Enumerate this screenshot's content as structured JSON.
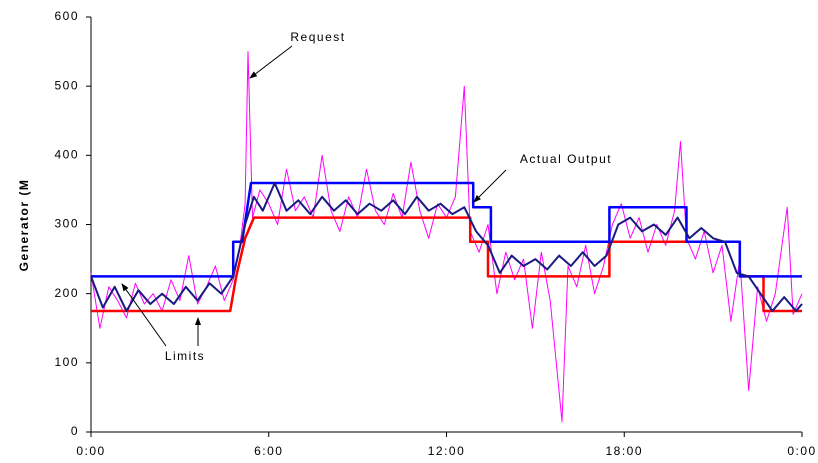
{
  "chart_data": {
    "type": "line",
    "y_label": "Generator (M",
    "xlim": [
      0,
      24
    ],
    "xticks": [
      {
        "value": 0,
        "label": "0:00"
      },
      {
        "value": 6,
        "label": "6:00"
      },
      {
        "value": 12,
        "label": "12:00"
      },
      {
        "value": 18,
        "label": "18:00"
      },
      {
        "value": 24,
        "label": "0:00"
      }
    ],
    "ylim": [
      0,
      600
    ],
    "yticks": [
      0,
      100,
      200,
      300,
      400,
      500,
      600
    ],
    "annotations": [
      {
        "text": "Request"
      },
      {
        "text": "Actual Output"
      },
      {
        "text": "Limits"
      }
    ],
    "series": [
      {
        "color": "#ff00ff",
        "width": 1,
        "x": [
          0,
          0.3,
          0.6,
          0.9,
          1.2,
          1.5,
          1.8,
          2.1,
          2.4,
          2.7,
          3.0,
          3.3,
          3.6,
          3.9,
          4.2,
          4.5,
          4.8,
          5.0,
          5.2,
          5.3,
          5.45,
          5.7,
          6.0,
          6.3,
          6.6,
          6.9,
          7.2,
          7.5,
          7.8,
          8.1,
          8.4,
          8.7,
          9.0,
          9.3,
          9.6,
          9.9,
          10.2,
          10.5,
          10.8,
          11.1,
          11.4,
          11.7,
          12.0,
          12.3,
          12.6,
          12.8,
          13.1,
          13.4,
          13.7,
          14.0,
          14.3,
          14.6,
          14.9,
          15.2,
          15.5,
          15.9,
          16.1,
          16.4,
          16.7,
          17.0,
          17.3,
          17.6,
          17.9,
          18.2,
          18.5,
          18.8,
          19.1,
          19.4,
          19.7,
          19.9,
          20.1,
          20.4,
          20.7,
          21.0,
          21.3,
          21.6,
          21.9,
          22.2,
          22.5,
          22.8,
          23.1,
          23.5,
          23.7,
          24
        ],
        "values": [
          230,
          150,
          210,
          190,
          165,
          215,
          185,
          200,
          175,
          220,
          190,
          255,
          185,
          210,
          240,
          190,
          220,
          260,
          330,
          550,
          310,
          350,
          330,
          300,
          380,
          320,
          340,
          310,
          400,
          320,
          290,
          340,
          310,
          380,
          320,
          300,
          345,
          310,
          390,
          320,
          280,
          330,
          310,
          340,
          500,
          290,
          260,
          300,
          200,
          260,
          220,
          250,
          150,
          260,
          190,
          15,
          240,
          210,
          270,
          200,
          240,
          300,
          330,
          280,
          310,
          260,
          300,
          270,
          320,
          420,
          280,
          250,
          290,
          230,
          270,
          160,
          250,
          60,
          210,
          160,
          200,
          325,
          170,
          200
        ]
      },
      {
        "color": "#ff0000",
        "width": 2.5,
        "x": [
          0,
          4.7,
          4.9,
          5.2,
          5.5,
          12.8,
          12.8,
          13.4,
          13.4,
          17.5,
          17.5,
          21.9,
          21.9,
          22.7,
          22.7,
          24
        ],
        "values": [
          175,
          175,
          225,
          280,
          310,
          310,
          275,
          275,
          225,
          225,
          275,
          275,
          225,
          225,
          175,
          175
        ]
      },
      {
        "color": "#0000ff",
        "width": 2.5,
        "x": [
          0,
          4.8,
          4.8,
          5.1,
          5.4,
          12.9,
          12.9,
          13.5,
          13.5,
          17.5,
          17.5,
          20.1,
          20.1,
          21.9,
          21.9,
          24
        ],
        "values": [
          225,
          225,
          275,
          275,
          360,
          360,
          325,
          325,
          275,
          275,
          325,
          325,
          275,
          275,
          225,
          225
        ]
      },
      {
        "color": "#1a1a80",
        "width": 2,
        "x": [
          0,
          0.4,
          0.8,
          1.2,
          1.6,
          2.0,
          2.4,
          2.8,
          3.2,
          3.6,
          4.0,
          4.4,
          4.8,
          5.2,
          5.5,
          5.8,
          6.2,
          6.6,
          7.0,
          7.4,
          7.8,
          8.2,
          8.6,
          9.0,
          9.4,
          9.8,
          10.2,
          10.6,
          11.0,
          11.4,
          11.8,
          12.2,
          12.6,
          13.0,
          13.4,
          13.8,
          14.2,
          14.6,
          15.0,
          15.4,
          15.8,
          16.2,
          16.6,
          17.0,
          17.4,
          17.8,
          18.2,
          18.6,
          19.0,
          19.4,
          19.8,
          20.2,
          20.6,
          21.0,
          21.4,
          21.8,
          22.2,
          22.6,
          23.0,
          23.4,
          23.8,
          24
        ],
        "values": [
          225,
          180,
          210,
          175,
          205,
          185,
          200,
          185,
          210,
          190,
          215,
          200,
          225,
          300,
          340,
          320,
          360,
          320,
          335,
          315,
          340,
          320,
          335,
          315,
          330,
          320,
          335,
          315,
          340,
          320,
          330,
          315,
          325,
          290,
          270,
          230,
          255,
          240,
          250,
          235,
          255,
          240,
          260,
          240,
          255,
          300,
          310,
          290,
          300,
          285,
          310,
          280,
          295,
          280,
          275,
          230,
          225,
          200,
          175,
          195,
          175,
          185
        ]
      }
    ]
  }
}
